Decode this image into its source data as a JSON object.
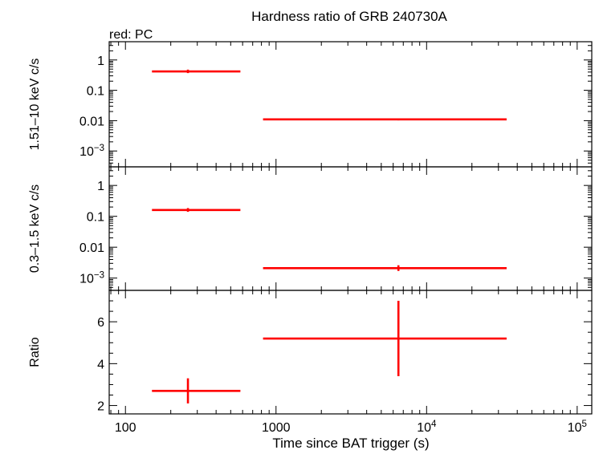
{
  "title": "Hardness ratio of GRB 240730A",
  "legend_note": "red: PC",
  "colors": {
    "series": "#ff0000",
    "axes": "#000000"
  },
  "chart_data": [
    {
      "type": "scatter",
      "panel": "hard-band",
      "ylabel": "1.51–10 keV c/s",
      "yscale": "log",
      "ylim": [
        0.0003,
        4.0
      ],
      "yticks": [
        {
          "value": 1,
          "label": "1",
          "sup": ""
        },
        {
          "value": 0.1,
          "label": "0.1",
          "sup": ""
        },
        {
          "value": 0.01,
          "label": "0.01",
          "sup": ""
        },
        {
          "value": 0.001,
          "label": "10",
          "sup": "−3"
        }
      ],
      "series": [
        {
          "points": [
            {
              "x": 260,
              "xlo": 150,
              "xhi": 580,
              "y": 0.42,
              "ylo": 0.37,
              "yhi": 0.48
            },
            {
              "x": 6500,
              "xlo": 820,
              "xhi": 34000,
              "y": 0.011,
              "ylo": 0.0102,
              "yhi": 0.0119
            }
          ]
        }
      ]
    },
    {
      "type": "scatter",
      "panel": "soft-band",
      "ylabel": "0.3–1.5 keV c/s",
      "yscale": "log",
      "ylim": [
        0.0004,
        4.0
      ],
      "yticks": [
        {
          "value": 1,
          "label": "1",
          "sup": ""
        },
        {
          "value": 0.1,
          "label": "0.1",
          "sup": ""
        },
        {
          "value": 0.01,
          "label": "0.01",
          "sup": ""
        },
        {
          "value": 0.001,
          "label": "10",
          "sup": "−3"
        }
      ],
      "series": [
        {
          "points": [
            {
              "x": 260,
              "xlo": 150,
              "xhi": 580,
              "y": 0.16,
              "ylo": 0.14,
              "yhi": 0.185
            },
            {
              "x": 6500,
              "xlo": 820,
              "xhi": 34000,
              "y": 0.0021,
              "ylo": 0.0017,
              "yhi": 0.0026
            }
          ]
        }
      ]
    },
    {
      "type": "scatter",
      "panel": "ratio",
      "ylabel": "Ratio",
      "yscale": "linear",
      "ylim": [
        1.6,
        7.5
      ],
      "yticks": [
        {
          "value": 2,
          "label": "2",
          "sup": ""
        },
        {
          "value": 4,
          "label": "4",
          "sup": ""
        },
        {
          "value": 6,
          "label": "6",
          "sup": ""
        }
      ],
      "series": [
        {
          "points": [
            {
              "x": 260,
              "xlo": 150,
              "xhi": 580,
              "y": 2.7,
              "ylo": 2.1,
              "yhi": 3.3
            },
            {
              "x": 6500,
              "xlo": 820,
              "xhi": 34000,
              "y": 5.2,
              "ylo": 3.4,
              "yhi": 7.0
            }
          ]
        }
      ]
    }
  ],
  "xaxis": {
    "label": "Time since BAT trigger (s)",
    "scale": "log",
    "xlim": [
      78,
      125000
    ],
    "ticks": [
      {
        "value": 100,
        "label": "100",
        "sup": ""
      },
      {
        "value": 1000,
        "label": "1000",
        "sup": ""
      },
      {
        "value": 10000,
        "label": "10",
        "sup": "4"
      },
      {
        "value": 100000,
        "label": "10",
        "sup": "5"
      }
    ]
  }
}
